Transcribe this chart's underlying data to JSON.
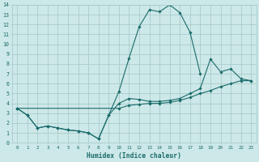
{
  "xlabel": "Humidex (Indice chaleur)",
  "xlim": [
    -0.5,
    23.5
  ],
  "ylim": [
    0,
    14
  ],
  "background_color": "#cde8e8",
  "grid_color": "#aacccc",
  "line_color": "#1a6b6b",
  "series": [
    {
      "x": [
        0,
        1,
        2,
        3,
        4,
        5,
        6,
        7,
        8,
        9,
        10,
        11,
        12,
        13,
        14,
        15,
        16,
        17,
        18
      ],
      "y": [
        3.5,
        2.8,
        1.5,
        1.7,
        1.5,
        1.3,
        1.2,
        1.0,
        0.4,
        2.8,
        5.2,
        8.6,
        11.8,
        13.5,
        13.3,
        14.0,
        13.2,
        11.2,
        7.0
      ]
    },
    {
      "x": [
        0,
        1,
        2,
        3,
        4,
        5,
        6,
        7,
        8,
        9,
        10,
        11,
        12,
        13,
        14,
        15,
        16,
        17,
        18,
        19,
        20,
        21,
        22,
        23
      ],
      "y": [
        3.5,
        2.8,
        1.5,
        1.7,
        1.5,
        1.3,
        1.2,
        1.0,
        0.4,
        2.8,
        4.0,
        4.5,
        4.4,
        4.2,
        4.2,
        4.3,
        4.5,
        5.0,
        5.5,
        8.5,
        7.2,
        7.5,
        6.5,
        6.3
      ]
    },
    {
      "x": [
        0,
        10,
        11,
        12,
        13,
        14,
        15,
        16,
        17,
        18,
        19,
        20,
        21,
        22,
        23
      ],
      "y": [
        3.5,
        3.5,
        3.8,
        3.9,
        4.0,
        4.0,
        4.1,
        4.3,
        4.6,
        5.0,
        5.3,
        5.7,
        6.0,
        6.3,
        6.3
      ]
    }
  ]
}
